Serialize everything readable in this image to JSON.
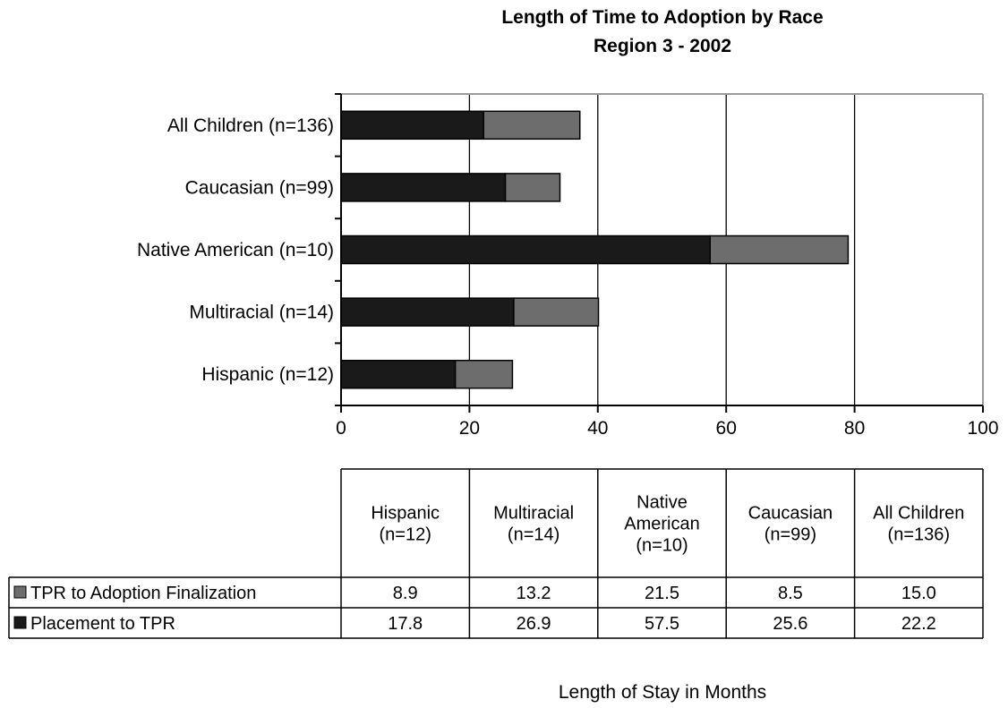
{
  "chart_data": {
    "type": "bar",
    "orientation": "horizontal",
    "stacked": true,
    "title": [
      "Length of Time to Adoption by Race",
      "Region 3 - 2002"
    ],
    "xlabel": "Length of Stay in Months",
    "xlim": [
      0,
      100
    ],
    "xticks": [
      "0",
      "20",
      "40",
      "60",
      "80",
      "100"
    ],
    "xtick_values": [
      0,
      20,
      40,
      60,
      80,
      100
    ],
    "grid": "vertical",
    "categories": [
      "Hispanic (n=12)",
      "Multiracial (n=14)",
      "Native American (n=10)",
      "Caucasian (n=99)",
      "All Children (n=136)"
    ],
    "table_headers": [
      [
        "Hispanic",
        "(n=12)"
      ],
      [
        "Multiracial",
        "(n=14)"
      ],
      [
        "Native",
        "American",
        "(n=10)"
      ],
      [
        "Caucasian",
        "(n=99)"
      ],
      [
        "All Children",
        "(n=136)"
      ]
    ],
    "series": [
      {
        "name": "Placement to TPR",
        "color": "#1a1a1a",
        "values": [
          17.8,
          26.9,
          57.5,
          25.6,
          22.2
        ],
        "value_labels": [
          "17.8",
          "26.9",
          "57.5",
          "25.6",
          "22.2"
        ]
      },
      {
        "name": "TPR to Adoption Finalization",
        "color": "#6d6d6d",
        "values": [
          8.9,
          13.2,
          21.5,
          8.5,
          15.0
        ],
        "value_labels": [
          "8.9",
          "13.2",
          "21.5",
          "8.5",
          "15.0"
        ]
      }
    ],
    "table_row_order": [
      1,
      0
    ]
  }
}
